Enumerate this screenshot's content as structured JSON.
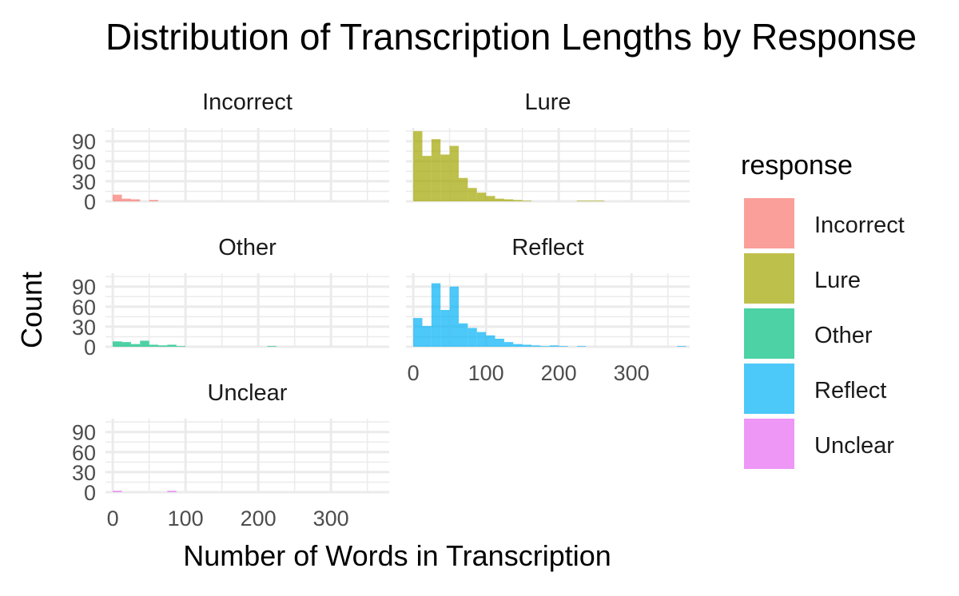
{
  "chart_data": {
    "type": "bar",
    "title": "Distribution of Transcription Lengths by Response",
    "xlabel": "Number of Words in Transcription",
    "ylabel": "Count",
    "xlim": [
      -10,
      380
    ],
    "ylim": [
      0,
      110
    ],
    "x_ticks": [
      "0",
      "100",
      "200",
      "300"
    ],
    "y_ticks": [
      "0",
      "30",
      "60",
      "90"
    ],
    "legend": {
      "title": "response",
      "position": "right"
    },
    "bin_width": 12.5,
    "bin_starts": [
      0,
      12.5,
      25,
      37.5,
      50,
      62.5,
      75,
      87.5,
      100,
      112.5,
      125,
      137.5,
      150,
      162.5,
      175,
      187.5,
      200,
      212.5,
      225,
      237.5,
      250,
      262.5,
      275,
      287.5,
      300,
      312.5,
      325,
      337.5,
      350,
      362.5
    ],
    "series": [
      {
        "name": "Incorrect",
        "color": "#F8766D",
        "values": [
          10,
          4,
          3,
          0,
          2,
          0,
          0,
          0,
          0,
          0,
          0,
          0,
          0,
          0,
          0,
          0,
          0,
          0,
          0,
          0,
          0,
          0,
          0,
          0,
          0,
          0,
          0,
          0,
          0,
          0
        ]
      },
      {
        "name": "Lure",
        "color": "#A3A500",
        "values": [
          105,
          68,
          93,
          70,
          83,
          35,
          20,
          13,
          8,
          4,
          3,
          2,
          1,
          0,
          0,
          0,
          0,
          0,
          1,
          1,
          1,
          0,
          0,
          0,
          0,
          0,
          0,
          0,
          0,
          0
        ]
      },
      {
        "name": "Other",
        "color": "#00BF7D",
        "values": [
          8,
          7,
          4,
          9,
          3,
          2,
          3,
          1,
          0,
          0,
          0,
          0,
          0,
          0,
          0,
          0,
          0,
          1,
          0,
          0,
          0,
          0,
          0,
          0,
          0,
          0,
          0,
          0,
          0,
          0
        ]
      },
      {
        "name": "Reflect",
        "color": "#00B0F6",
        "values": [
          43,
          31,
          95,
          55,
          90,
          35,
          28,
          22,
          17,
          12,
          7,
          4,
          3,
          2,
          1,
          2,
          1,
          0,
          1,
          0,
          0,
          0,
          0,
          0,
          0,
          0,
          0,
          0,
          0,
          1
        ]
      },
      {
        "name": "Unclear",
        "color": "#E76BF3",
        "values": [
          2,
          0,
          0,
          0,
          0,
          0,
          2,
          0,
          0,
          0,
          0,
          0,
          0,
          0,
          0,
          0,
          0,
          0,
          0,
          0,
          0,
          0,
          0,
          0,
          0,
          0,
          0,
          0,
          0,
          0
        ]
      }
    ]
  }
}
